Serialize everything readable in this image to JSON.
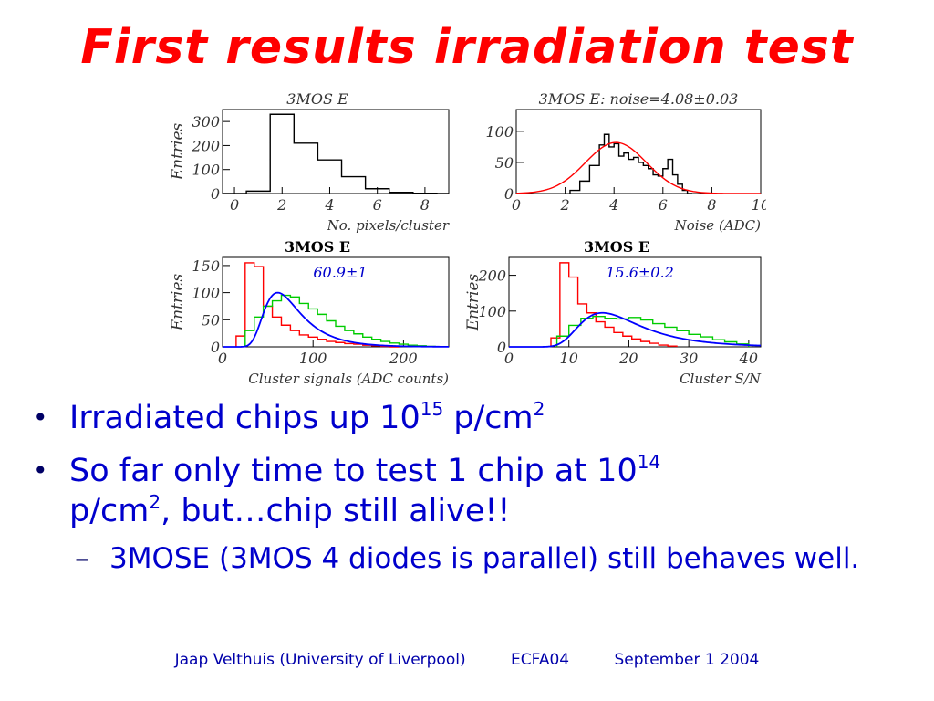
{
  "title": "First results irradiation test",
  "chart_data": [
    {
      "type": "histogram",
      "title": "3MOS E",
      "xlabel": "No. pixels/cluster",
      "ylabel": "Entries",
      "xlim": [
        -0.5,
        9
      ],
      "ylim": [
        0,
        350
      ],
      "xticks": [
        0,
        2,
        4,
        6,
        8
      ],
      "yticks": [
        0,
        100,
        200,
        300
      ],
      "series": [
        {
          "color": "#000000",
          "edges": [
            -0.5,
            0.5,
            1.5,
            2.5,
            3.5,
            4.5,
            5.5,
            6.5,
            7.5,
            8.5,
            9
          ],
          "values": [
            0,
            10,
            330,
            210,
            140,
            70,
            20,
            5,
            1,
            0
          ]
        }
      ]
    },
    {
      "type": "histogram",
      "title": "3MOS E: noise=4.08±0.03",
      "xlabel": "Noise (ADC)",
      "ylabel": "",
      "xlim": [
        0,
        10
      ],
      "ylim": [
        0,
        135
      ],
      "xticks": [
        0,
        2,
        4,
        6,
        8,
        10
      ],
      "yticks": [
        0,
        50,
        100
      ],
      "series": [
        {
          "color": "#000000",
          "edges": [
            2.2,
            2.6,
            3.0,
            3.4,
            3.6,
            3.8,
            4.0,
            4.2,
            4.4,
            4.6,
            4.8,
            5.0,
            5.2,
            5.4,
            5.6,
            5.8,
            6.0,
            6.2,
            6.4,
            6.6,
            6.8,
            7.0,
            7.2
          ],
          "values": [
            5,
            20,
            45,
            78,
            95,
            75,
            80,
            60,
            65,
            55,
            58,
            50,
            45,
            40,
            30,
            28,
            40,
            55,
            30,
            15,
            5,
            0
          ]
        },
        {
          "color": "#ff0000",
          "kind": "gauss",
          "mean": 4.08,
          "sigma": 1.25,
          "amplitude": 82
        }
      ]
    },
    {
      "type": "histogram",
      "title": "3MOS E",
      "xlabel": "Cluster signals (ADC counts)",
      "ylabel": "Entries",
      "annotation": "60.9±1",
      "xlim": [
        0,
        250
      ],
      "ylim": [
        0,
        165
      ],
      "xticks": [
        0,
        100,
        200
      ],
      "yticks": [
        0,
        50,
        100,
        150
      ],
      "series": [
        {
          "color": "#ff0000",
          "edges": [
            15,
            25,
            35,
            45,
            55,
            65,
            75,
            85,
            95,
            105,
            115,
            125,
            135,
            145,
            155,
            165,
            175,
            185,
            195
          ],
          "values": [
            20,
            155,
            148,
            75,
            55,
            40,
            30,
            22,
            18,
            14,
            10,
            8,
            6,
            5,
            3,
            2,
            1,
            0
          ]
        },
        {
          "color": "#00cc00",
          "edges": [
            25,
            35,
            45,
            55,
            65,
            75,
            85,
            95,
            105,
            115,
            125,
            135,
            145,
            155,
            165,
            175,
            185,
            195,
            205,
            215,
            225,
            235
          ],
          "values": [
            30,
            55,
            75,
            85,
            95,
            92,
            80,
            70,
            60,
            48,
            38,
            30,
            24,
            18,
            14,
            10,
            7,
            5,
            3,
            2,
            1
          ]
        },
        {
          "color": "#0000ff",
          "kind": "landau",
          "mpv": 60.9,
          "width": 14,
          "amplitude": 100
        }
      ]
    },
    {
      "type": "histogram",
      "title": "3MOS E",
      "xlabel": "Cluster S/N",
      "ylabel": "Entries",
      "annotation": "15.6±0.2",
      "xlim": [
        0,
        42
      ],
      "ylim": [
        0,
        250
      ],
      "xticks": [
        0,
        10,
        20,
        30,
        40
      ],
      "yticks": [
        0,
        100,
        200
      ],
      "series": [
        {
          "color": "#ff0000",
          "edges": [
            7,
            8.5,
            10,
            11.5,
            13,
            14.5,
            16,
            17.5,
            19,
            20.5,
            22,
            23.5,
            25,
            26.5,
            28
          ],
          "values": [
            25,
            235,
            195,
            120,
            95,
            70,
            55,
            40,
            30,
            22,
            15,
            10,
            5,
            2
          ]
        },
        {
          "color": "#00cc00",
          "edges": [
            8,
            10,
            12,
            14,
            16,
            18,
            20,
            22,
            24,
            26,
            28,
            30,
            32,
            34,
            36,
            38,
            40
          ],
          "values": [
            30,
            60,
            80,
            85,
            80,
            78,
            82,
            75,
            65,
            55,
            45,
            35,
            28,
            20,
            14,
            8
          ]
        },
        {
          "color": "#0000ff",
          "kind": "landau",
          "mpv": 15.6,
          "width": 3.5,
          "amplitude": 95
        }
      ]
    }
  ],
  "bullets": [
    {
      "text": "Irradiated chips up 10",
      "sup1": "15",
      "mid": " p/cm",
      "sup2": "2",
      "tail": ""
    },
    {
      "text": "So far only time to test 1 chip at 10",
      "sup1": "14",
      "mid": " p/cm",
      "sup2": "2",
      "tail": ", but…chip still alive!!"
    }
  ],
  "sub_bullet": "3MOSE (3MOS 4 diodes is parallel) still behaves well.",
  "footer": {
    "author": "Jaap Velthuis (University of Liverpool)",
    "event": "ECFA04",
    "date": "September 1 2004"
  }
}
